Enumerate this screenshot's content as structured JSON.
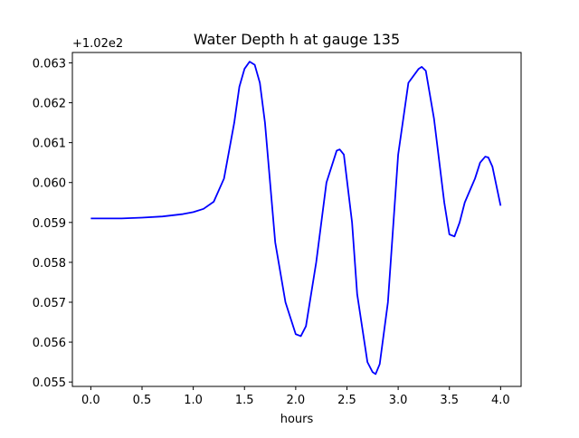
{
  "chart_data": {
    "type": "line",
    "title": "Water Depth h at gauge 135",
    "xlabel": "hours",
    "ylabel": "",
    "offset_label": "+1.02e2",
    "xlim": [
      -0.18,
      4.2
    ],
    "ylim": [
      0.05489,
      0.06326
    ],
    "xticks": [
      0.0,
      0.5,
      1.0,
      1.5,
      2.0,
      2.5,
      3.0,
      3.5,
      4.0
    ],
    "xtick_labels": [
      "0.0",
      "0.5",
      "1.0",
      "1.5",
      "2.0",
      "2.5",
      "3.0",
      "3.5",
      "4.0"
    ],
    "yticks": [
      0.055,
      0.056,
      0.057,
      0.058,
      0.059,
      0.06,
      0.061,
      0.062,
      0.063
    ],
    "ytick_labels": [
      "0.055",
      "0.056",
      "0.057",
      "0.058",
      "0.059",
      "0.060",
      "0.061",
      "0.062",
      "0.063"
    ],
    "grid": false,
    "line_color": "#0000ff",
    "series": [
      {
        "x": [
          0.0,
          0.3,
          0.5,
          0.7,
          0.9,
          1.0,
          1.1,
          1.2,
          1.3,
          1.4,
          1.45,
          1.5,
          1.55,
          1.6,
          1.65,
          1.7,
          1.8,
          1.9,
          2.0,
          2.05,
          2.1,
          2.2,
          2.3,
          2.4,
          2.43,
          2.47,
          2.55,
          2.6,
          2.7,
          2.75,
          2.78,
          2.82,
          2.9,
          3.0,
          3.1,
          3.2,
          3.23,
          3.27,
          3.35,
          3.45,
          3.5,
          3.55,
          3.6,
          3.65,
          3.7,
          3.75,
          3.8,
          3.85,
          3.88,
          3.92,
          4.0
        ],
        "y": [
          0.0591,
          0.0591,
          0.05912,
          0.05915,
          0.05921,
          0.05926,
          0.05934,
          0.05952,
          0.0601,
          0.0615,
          0.0624,
          0.06285,
          0.06303,
          0.06295,
          0.0625,
          0.0615,
          0.0585,
          0.057,
          0.0562,
          0.05615,
          0.0564,
          0.058,
          0.06,
          0.0608,
          0.06083,
          0.0607,
          0.059,
          0.0572,
          0.0555,
          0.05525,
          0.0552,
          0.05545,
          0.057,
          0.0607,
          0.0625,
          0.06285,
          0.0629,
          0.0628,
          0.0616,
          0.0595,
          0.0587,
          0.05865,
          0.059,
          0.0595,
          0.0598,
          0.0601,
          0.0605,
          0.06065,
          0.06063,
          0.0604,
          0.05942
        ]
      }
    ]
  }
}
